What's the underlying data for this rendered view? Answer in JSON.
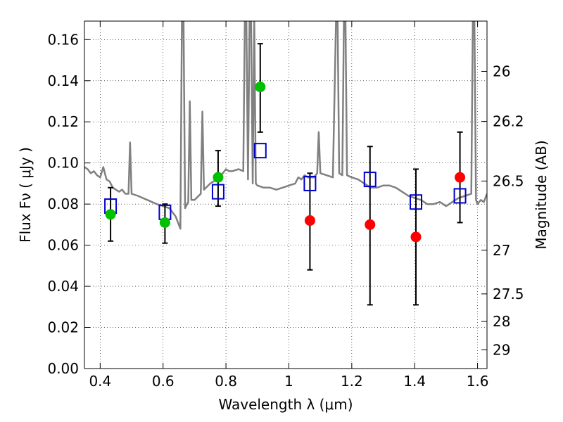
{
  "chart_data": {
    "type": "scatter",
    "xlabel": "Wavelength  λ (μm)",
    "ylabel": "Flux  Fν  ( μJy )",
    "ylabel_right": "Magnitude (AB)",
    "xlim": [
      0.35,
      1.63
    ],
    "ylim": [
      0.0,
      0.169
    ],
    "grid": true,
    "x_ticks": [
      {
        "v": 0.4,
        "label": "0.4"
      },
      {
        "v": 0.6,
        "label": "0.6"
      },
      {
        "v": 0.8,
        "label": "0.8"
      },
      {
        "v": 1.0,
        "label": "1"
      },
      {
        "v": 1.2,
        "label": "1.2"
      },
      {
        "v": 1.4,
        "label": "1.4"
      },
      {
        "v": 1.6,
        "label": "1.6"
      }
    ],
    "y_ticks": [
      {
        "v": 0.0,
        "label": "0.00"
      },
      {
        "v": 0.02,
        "label": "0.02"
      },
      {
        "v": 0.04,
        "label": "0.04"
      },
      {
        "v": 0.06,
        "label": "0.06"
      },
      {
        "v": 0.08,
        "label": "0.08"
      },
      {
        "v": 0.1,
        "label": "0.10"
      },
      {
        "v": 0.12,
        "label": "0.12"
      },
      {
        "v": 0.14,
        "label": "0.14"
      },
      {
        "v": 0.16,
        "label": "0.16"
      }
    ],
    "right_ticks": [
      {
        "mag": 26,
        "label": "26"
      },
      {
        "mag": 26.2,
        "label": "26.2"
      },
      {
        "mag": 26.5,
        "label": "26.5"
      },
      {
        "mag": 27,
        "label": "27"
      },
      {
        "mag": 27.5,
        "label": "27.5"
      },
      {
        "mag": 28,
        "label": "28"
      },
      {
        "mag": 29,
        "label": "29"
      }
    ],
    "spectrum": {
      "color": "#808080",
      "points": [
        [
          0.35,
          0.098
        ],
        [
          0.36,
          0.097
        ],
        [
          0.37,
          0.095
        ],
        [
          0.38,
          0.096
        ],
        [
          0.39,
          0.094
        ],
        [
          0.4,
          0.093
        ],
        [
          0.41,
          0.098
        ],
        [
          0.42,
          0.092
        ],
        [
          0.43,
          0.091
        ],
        [
          0.44,
          0.088
        ],
        [
          0.45,
          0.087
        ],
        [
          0.46,
          0.086
        ],
        [
          0.47,
          0.087
        ],
        [
          0.48,
          0.085
        ],
        [
          0.49,
          0.085
        ],
        [
          0.495,
          0.11
        ],
        [
          0.5,
          0.085
        ],
        [
          0.52,
          0.084
        ],
        [
          0.55,
          0.082
        ],
        [
          0.58,
          0.08
        ],
        [
          0.6,
          0.079
        ],
        [
          0.62,
          0.078
        ],
        [
          0.64,
          0.074
        ],
        [
          0.65,
          0.07
        ],
        [
          0.655,
          0.068
        ],
        [
          0.66,
          0.17
        ],
        [
          0.665,
          0.17
        ],
        [
          0.67,
          0.078
        ],
        [
          0.68,
          0.081
        ],
        [
          0.685,
          0.13
        ],
        [
          0.69,
          0.082
        ],
        [
          0.7,
          0.082
        ],
        [
          0.72,
          0.085
        ],
        [
          0.725,
          0.125
        ],
        [
          0.73,
          0.087
        ],
        [
          0.75,
          0.09
        ],
        [
          0.77,
          0.092
        ],
        [
          0.78,
          0.093
        ],
        [
          0.79,
          0.095
        ],
        [
          0.8,
          0.097
        ],
        [
          0.81,
          0.096
        ],
        [
          0.82,
          0.096
        ],
        [
          0.84,
          0.097
        ],
        [
          0.855,
          0.096
        ],
        [
          0.86,
          0.17
        ],
        [
          0.865,
          0.17
        ],
        [
          0.87,
          0.092
        ],
        [
          0.875,
          0.17
        ],
        [
          0.88,
          0.17
        ],
        [
          0.885,
          0.09
        ],
        [
          0.89,
          0.17
        ],
        [
          0.895,
          0.09
        ],
        [
          0.9,
          0.089
        ],
        [
          0.92,
          0.088
        ],
        [
          0.94,
          0.088
        ],
        [
          0.96,
          0.087
        ],
        [
          0.98,
          0.088
        ],
        [
          1.0,
          0.089
        ],
        [
          1.02,
          0.09
        ],
        [
          1.03,
          0.093
        ],
        [
          1.04,
          0.092
        ],
        [
          1.05,
          0.094
        ],
        [
          1.06,
          0.093
        ],
        [
          1.08,
          0.093
        ],
        [
          1.09,
          0.095
        ],
        [
          1.095,
          0.115
        ],
        [
          1.1,
          0.095
        ],
        [
          1.12,
          0.094
        ],
        [
          1.14,
          0.093
        ],
        [
          1.15,
          0.17
        ],
        [
          1.155,
          0.17
        ],
        [
          1.16,
          0.095
        ],
        [
          1.17,
          0.094
        ],
        [
          1.175,
          0.17
        ],
        [
          1.18,
          0.17
        ],
        [
          1.185,
          0.094
        ],
        [
          1.2,
          0.093
        ],
        [
          1.22,
          0.092
        ],
        [
          1.24,
          0.09
        ],
        [
          1.26,
          0.088
        ],
        [
          1.28,
          0.088
        ],
        [
          1.3,
          0.089
        ],
        [
          1.32,
          0.089
        ],
        [
          1.34,
          0.088
        ],
        [
          1.36,
          0.086
        ],
        [
          1.38,
          0.084
        ],
        [
          1.4,
          0.083
        ],
        [
          1.42,
          0.082
        ],
        [
          1.44,
          0.08
        ],
        [
          1.46,
          0.08
        ],
        [
          1.48,
          0.081
        ],
        [
          1.5,
          0.079
        ],
        [
          1.52,
          0.081
        ],
        [
          1.54,
          0.083
        ],
        [
          1.56,
          0.084
        ],
        [
          1.58,
          0.085
        ],
        [
          1.585,
          0.17
        ],
        [
          1.59,
          0.17
        ],
        [
          1.595,
          0.082
        ],
        [
          1.6,
          0.08
        ],
        [
          1.61,
          0.082
        ],
        [
          1.62,
          0.081
        ],
        [
          1.63,
          0.085
        ]
      ]
    },
    "observed_points": [
      {
        "x": 0.433,
        "y": 0.075,
        "err_lo": 0.062,
        "err_hi": 0.088,
        "color": "#00c000"
      },
      {
        "x": 0.606,
        "y": 0.071,
        "err_lo": 0.061,
        "err_hi": 0.08,
        "color": "#00c000"
      },
      {
        "x": 0.775,
        "y": 0.093,
        "err_lo": 0.079,
        "err_hi": 0.106,
        "color": "#00c000"
      },
      {
        "x": 0.909,
        "y": 0.137,
        "err_lo": 0.115,
        "err_hi": 0.158,
        "color": "#00c000"
      },
      {
        "x": 1.067,
        "y": 0.072,
        "err_lo": 0.048,
        "err_hi": 0.095,
        "color": "#ff0000"
      },
      {
        "x": 1.258,
        "y": 0.07,
        "err_lo": 0.031,
        "err_hi": 0.108,
        "color": "#ff0000"
      },
      {
        "x": 1.404,
        "y": 0.064,
        "err_lo": 0.031,
        "err_hi": 0.097,
        "color": "#ff0000"
      },
      {
        "x": 1.544,
        "y": 0.093,
        "err_lo": 0.071,
        "err_hi": 0.115,
        "color": "#ff0000"
      }
    ],
    "model_points": {
      "color": "#0000cc",
      "points": [
        {
          "x": 0.433,
          "y": 0.079
        },
        {
          "x": 0.606,
          "y": 0.076
        },
        {
          "x": 0.775,
          "y": 0.086
        },
        {
          "x": 0.909,
          "y": 0.106
        },
        {
          "x": 1.067,
          "y": 0.09
        },
        {
          "x": 1.258,
          "y": 0.092
        },
        {
          "x": 1.404,
          "y": 0.081
        },
        {
          "x": 1.544,
          "y": 0.084
        }
      ]
    }
  }
}
